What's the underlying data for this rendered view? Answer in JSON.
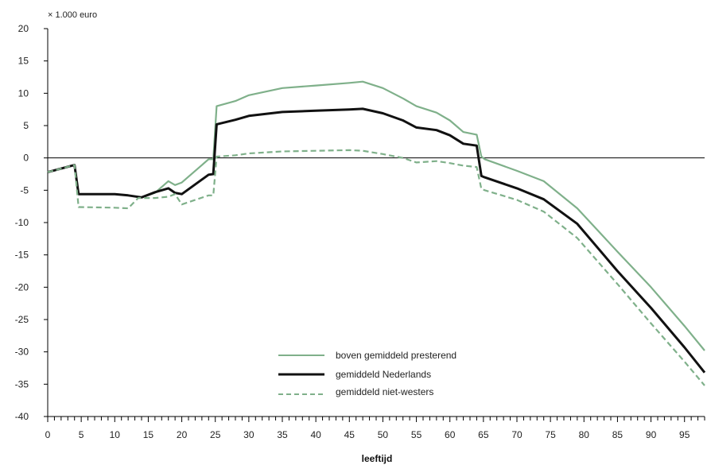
{
  "chart_data": {
    "type": "line",
    "title": "",
    "unit_label": "× 1.000 euro",
    "xlabel": "leeftijd",
    "ylabel": "",
    "xlim": [
      0,
      98
    ],
    "ylim": [
      -40,
      20
    ],
    "x_ticks": [
      0,
      5,
      10,
      15,
      20,
      25,
      30,
      35,
      40,
      45,
      50,
      55,
      60,
      65,
      70,
      75,
      80,
      85,
      90,
      95
    ],
    "y_ticks": [
      20,
      15,
      10,
      5,
      0,
      -5,
      -10,
      -15,
      -20,
      -25,
      -30,
      -35,
      -40
    ],
    "zero_line": true,
    "grid": false,
    "legend_position": "bottom-center",
    "series": [
      {
        "name": "boven gemiddeld presterend",
        "color": "#7fb08a",
        "dash": "solid",
        "points": [
          [
            0,
            -2.2
          ],
          [
            4,
            -1.1
          ],
          [
            4.6,
            -5.6
          ],
          [
            10,
            -5.6
          ],
          [
            12,
            -5.8
          ],
          [
            14,
            -6.1
          ],
          [
            16,
            -5.4
          ],
          [
            18,
            -3.6
          ],
          [
            19,
            -4.2
          ],
          [
            20,
            -3.8
          ],
          [
            24,
            -0.2
          ],
          [
            24.7,
            -0.2
          ],
          [
            25.2,
            8.0
          ],
          [
            28,
            8.8
          ],
          [
            30,
            9.7
          ],
          [
            35,
            10.8
          ],
          [
            40,
            11.2
          ],
          [
            45,
            11.6
          ],
          [
            47,
            11.8
          ],
          [
            50,
            10.8
          ],
          [
            53,
            9.2
          ],
          [
            55,
            8.0
          ],
          [
            58,
            7.0
          ],
          [
            60,
            5.8
          ],
          [
            62,
            4.0
          ],
          [
            64,
            3.6
          ],
          [
            64.7,
            0.2
          ],
          [
            65.2,
            -0.2
          ],
          [
            70,
            -2.0
          ],
          [
            74,
            -3.6
          ],
          [
            79,
            -7.8
          ],
          [
            85,
            -14.5
          ],
          [
            90,
            -20.0
          ],
          [
            95,
            -26.0
          ],
          [
            98,
            -29.8
          ]
        ]
      },
      {
        "name": "gemiddeld Nederlands",
        "color": "#111111",
        "dash": "solid",
        "points": [
          [
            0,
            -2.2
          ],
          [
            4,
            -1.1
          ],
          [
            4.6,
            -5.6
          ],
          [
            10,
            -5.6
          ],
          [
            12,
            -5.8
          ],
          [
            14,
            -6.1
          ],
          [
            16,
            -5.3
          ],
          [
            18,
            -4.7
          ],
          [
            19,
            -5.4
          ],
          [
            20,
            -5.6
          ],
          [
            24,
            -2.6
          ],
          [
            24.7,
            -2.5
          ],
          [
            25.2,
            5.2
          ],
          [
            28,
            5.9
          ],
          [
            30,
            6.5
          ],
          [
            35,
            7.1
          ],
          [
            40,
            7.3
          ],
          [
            45,
            7.5
          ],
          [
            47,
            7.6
          ],
          [
            50,
            6.9
          ],
          [
            53,
            5.8
          ],
          [
            55,
            4.7
          ],
          [
            58,
            4.3
          ],
          [
            60,
            3.5
          ],
          [
            62,
            2.2
          ],
          [
            64,
            1.9
          ],
          [
            64.7,
            -2.8
          ],
          [
            65.2,
            -3.0
          ],
          [
            70,
            -4.7
          ],
          [
            74,
            -6.4
          ],
          [
            79,
            -10.2
          ],
          [
            85,
            -17.5
          ],
          [
            90,
            -23.2
          ],
          [
            95,
            -29.3
          ],
          [
            98,
            -33.2
          ]
        ]
      },
      {
        "name": "gemiddeld niet-westers",
        "color": "#7fb08a",
        "dash": "dashed",
        "points": [
          [
            0,
            -2.2
          ],
          [
            4,
            -1.1
          ],
          [
            4.6,
            -7.6
          ],
          [
            10,
            -7.7
          ],
          [
            12,
            -7.8
          ],
          [
            13.5,
            -6.2
          ],
          [
            16,
            -6.2
          ],
          [
            18,
            -6.0
          ],
          [
            19,
            -5.6
          ],
          [
            20,
            -7.2
          ],
          [
            24,
            -5.8
          ],
          [
            24.7,
            -5.8
          ],
          [
            25.2,
            0.2
          ],
          [
            28,
            0.4
          ],
          [
            30,
            0.7
          ],
          [
            35,
            1.0
          ],
          [
            40,
            1.1
          ],
          [
            45,
            1.2
          ],
          [
            47,
            1.1
          ],
          [
            50,
            0.6
          ],
          [
            53,
            0.0
          ],
          [
            55,
            -0.7
          ],
          [
            58,
            -0.5
          ],
          [
            60,
            -0.8
          ],
          [
            62,
            -1.2
          ],
          [
            64,
            -1.4
          ],
          [
            64.7,
            -4.8
          ],
          [
            65.2,
            -5.0
          ],
          [
            70,
            -6.5
          ],
          [
            74,
            -8.3
          ],
          [
            79,
            -12.4
          ],
          [
            85,
            -19.5
          ],
          [
            90,
            -25.6
          ],
          [
            95,
            -31.5
          ],
          [
            98,
            -35.2
          ]
        ]
      }
    ]
  }
}
